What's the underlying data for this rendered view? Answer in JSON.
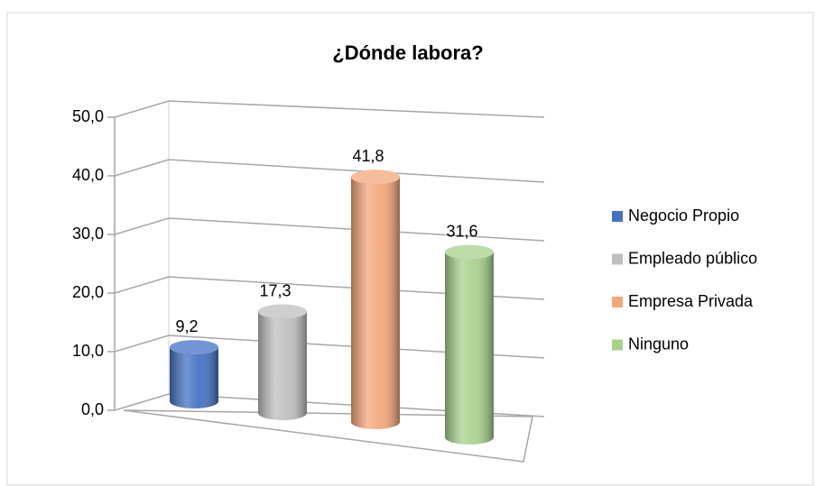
{
  "chart_data": {
    "type": "bar3d",
    "title": "¿Dónde labora?",
    "categories": [
      "Negocio Propio",
      "Empleado público",
      "Empresa Privada",
      "Ninguno"
    ],
    "values": [
      9.2,
      17.3,
      41.8,
      31.6
    ],
    "value_labels": [
      "9,2",
      "17,3",
      "41,8",
      "31,6"
    ],
    "colors": [
      "#4472c4",
      "#bfbfbf",
      "#f4a77a",
      "#a9d18e"
    ],
    "ylim": [
      0,
      50
    ],
    "yticks": [
      {
        "value": 0,
        "label": "0,0"
      },
      {
        "value": 10,
        "label": "10,0"
      },
      {
        "value": 20,
        "label": "20,0"
      },
      {
        "value": 30,
        "label": "30,0"
      },
      {
        "value": 40,
        "label": "40,0"
      },
      {
        "value": 50,
        "label": "50,0"
      }
    ],
    "grid": true,
    "legend": "right"
  }
}
